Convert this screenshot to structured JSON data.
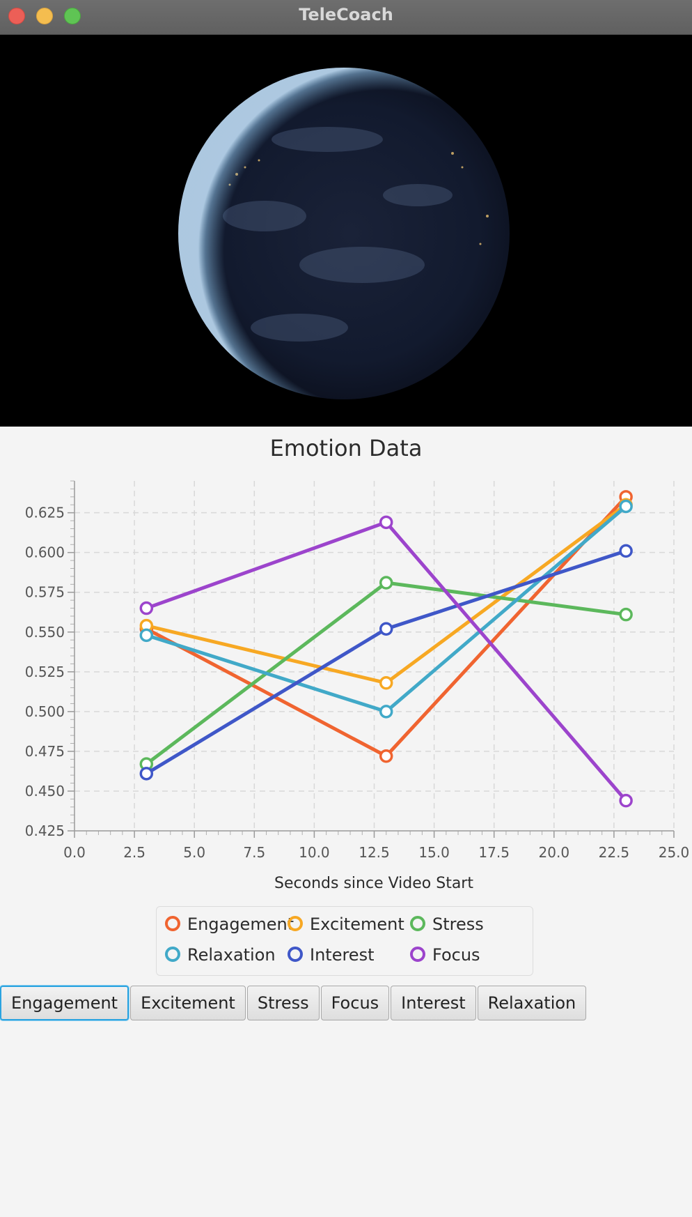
{
  "window": {
    "title": "TeleCoach"
  },
  "video": {
    "content": "earth-at-night"
  },
  "chart_data": {
    "type": "line",
    "title": "Emotion Data",
    "xlabel": "Seconds since Video Start",
    "ylabel": "",
    "xlim": [
      0,
      25
    ],
    "ylim": [
      0.425,
      0.645
    ],
    "xticks": [
      "0.0",
      "2.5",
      "5.0",
      "7.5",
      "10.0",
      "12.5",
      "15.0",
      "17.5",
      "20.0",
      "22.5",
      "25.0"
    ],
    "yticks": [
      "0.425",
      "0.450",
      "0.475",
      "0.500",
      "0.525",
      "0.550",
      "0.575",
      "0.600",
      "0.625"
    ],
    "grid": true,
    "legend": "bottom",
    "series": [
      {
        "name": "Engagement",
        "color": "#f06430",
        "x": [
          3,
          13,
          23
        ],
        "y": [
          0.552,
          0.472,
          0.635
        ]
      },
      {
        "name": "Excitement",
        "color": "#f7a823",
        "x": [
          3,
          13,
          23
        ],
        "y": [
          0.554,
          0.518,
          0.63
        ]
      },
      {
        "name": "Stress",
        "color": "#5cb85c",
        "x": [
          3,
          13,
          23
        ],
        "y": [
          0.467,
          0.581,
          0.561
        ]
      },
      {
        "name": "Relaxation",
        "color": "#41a9c8",
        "x": [
          3,
          13,
          23
        ],
        "y": [
          0.548,
          0.5,
          0.629
        ]
      },
      {
        "name": "Interest",
        "color": "#3f57c8",
        "x": [
          3,
          13,
          23
        ],
        "y": [
          0.461,
          0.552,
          0.601
        ]
      },
      {
        "name": "Focus",
        "color": "#9c44cc",
        "x": [
          3,
          13,
          23
        ],
        "y": [
          0.565,
          0.619,
          0.444
        ]
      }
    ]
  },
  "buttons": [
    {
      "label": "Engagement",
      "focused": true
    },
    {
      "label": "Excitement",
      "focused": false
    },
    {
      "label": "Stress",
      "focused": false
    },
    {
      "label": "Focus",
      "focused": false
    },
    {
      "label": "Interest",
      "focused": false
    },
    {
      "label": "Relaxation",
      "focused": false
    }
  ]
}
